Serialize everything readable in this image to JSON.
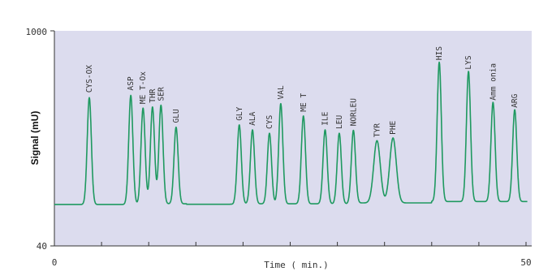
{
  "chart_data": {
    "type": "line",
    "xlabel": "Time ( min.)",
    "ylabel": "Signal (mU)",
    "xlim": [
      0,
      50
    ],
    "ylim": [
      40,
      1000
    ],
    "x_tick_labels": [
      "0",
      "50"
    ],
    "y_tick_labels": [
      "40",
      "1000"
    ],
    "grid": false,
    "colors": {
      "line": "#1f9960",
      "plot_bg": "#dcdcee",
      "axis": "#333333"
    },
    "baseline": 225,
    "peaks": [
      {
        "name": "CYS-OX",
        "x": 3.7,
        "y": 702
      },
      {
        "name": "ASP",
        "x": 8.1,
        "y": 712
      },
      {
        "name": "ME T-Ox",
        "x": 9.4,
        "y": 652
      },
      {
        "name": "THR",
        "x": 10.4,
        "y": 657
      },
      {
        "name": "SER",
        "x": 11.3,
        "y": 665
      },
      {
        "name": "GLU",
        "x": 12.9,
        "y": 567
      },
      {
        "name": "GLY",
        "x": 19.6,
        "y": 577
      },
      {
        "name": "ALA",
        "x": 21.0,
        "y": 555
      },
      {
        "name": "CYS",
        "x": 22.8,
        "y": 540
      },
      {
        "name": "VAL",
        "x": 24.0,
        "y": 672
      },
      {
        "name": "ME T",
        "x": 26.4,
        "y": 617
      },
      {
        "name": "ILE",
        "x": 28.7,
        "y": 555
      },
      {
        "name": "LEU",
        "x": 30.2,
        "y": 540
      },
      {
        "name": "NORLEU",
        "x": 31.7,
        "y": 553
      },
      {
        "name": "TYR",
        "x": 34.2,
        "y": 503
      },
      {
        "name": "PHE",
        "x": 35.9,
        "y": 515
      },
      {
        "name": "HIS",
        "x": 40.8,
        "y": 847
      },
      {
        "name": "LYS",
        "x": 43.9,
        "y": 806
      },
      {
        "name": "Amm onia",
        "x": 46.5,
        "y": 668
      },
      {
        "name": "ARG",
        "x": 48.8,
        "y": 635
      }
    ]
  }
}
